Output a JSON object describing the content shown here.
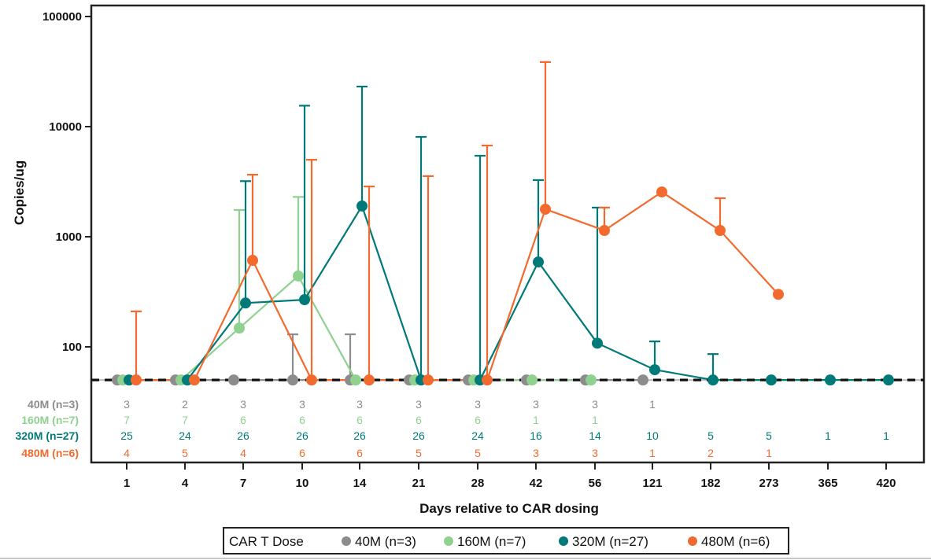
{
  "chart_data": {
    "type": "line",
    "title": "",
    "xlabel": "Days relative to CAR dosing",
    "ylabel": "Copies/ug",
    "yscale": "log",
    "ylim": [
      10,
      100000
    ],
    "yticks": [
      100,
      1000,
      10000,
      100000
    ],
    "ytick_labels": [
      "100",
      "1000",
      "10000",
      "100000"
    ],
    "categories": [
      "1",
      "4",
      "7",
      "10",
      "14",
      "21",
      "28",
      "42",
      "56",
      "121",
      "182",
      "273",
      "365",
      "420"
    ],
    "reference_line": {
      "value": 50,
      "style": "dashed"
    },
    "grid": false,
    "legend": {
      "title": "CAR T Dose",
      "placement": "bottom",
      "entries": [
        "40M (n=3)",
        "160M (n=7)",
        "320M (n=27)",
        "480M (n=6)"
      ]
    },
    "series": [
      {
        "name": "40M (n=3)",
        "color": "#8c8c8c",
        "values": [
          50,
          50,
          50,
          50,
          50,
          50,
          50,
          50,
          50,
          50,
          null,
          null,
          null,
          null
        ],
        "error_upper": [
          null,
          null,
          null,
          130,
          130,
          null,
          null,
          null,
          null,
          null,
          null,
          null,
          null,
          null
        ],
        "n_at_risk": [
          "3",
          "2",
          "3",
          "3",
          "3",
          "3",
          "3",
          "3",
          "3",
          "1",
          "",
          "",
          "",
          ""
        ]
      },
      {
        "name": "160M (n=7)",
        "color": "#8fd18f",
        "values": [
          50,
          50,
          148,
          440,
          50,
          50,
          50,
          50,
          50,
          null,
          null,
          null,
          null,
          null
        ],
        "error_upper": [
          null,
          null,
          1750,
          2300,
          null,
          null,
          null,
          null,
          null,
          null,
          null,
          null,
          null,
          null
        ],
        "n_at_risk": [
          "7",
          "7",
          "6",
          "6",
          "6",
          "6",
          "6",
          "1",
          "1",
          "",
          "",
          "",
          "",
          ""
        ]
      },
      {
        "name": "320M (n=27)",
        "color": "#007a78",
        "values": [
          50,
          50,
          250,
          268,
          1900,
          50,
          50,
          590,
          108,
          62,
          50,
          50,
          50,
          50
        ],
        "error_upper": [
          null,
          null,
          3200,
          15500,
          23100,
          8070,
          5440,
          3270,
          1840,
          112,
          86,
          null,
          null,
          null
        ],
        "n_at_risk": [
          "25",
          "24",
          "26",
          "26",
          "26",
          "26",
          "24",
          "16",
          "14",
          "10",
          "5",
          "5",
          "1",
          "1"
        ]
      },
      {
        "name": "480M (n=6)",
        "color": "#f26a2e",
        "values": [
          50,
          50,
          610,
          50,
          50,
          50,
          50,
          1780,
          1140,
          2550,
          1140,
          300,
          null,
          null
        ],
        "error_upper": [
          210,
          null,
          3660,
          5000,
          2860,
          3550,
          6740,
          38600,
          1840,
          null,
          2240,
          null,
          null,
          null
        ],
        "n_at_risk": [
          "4",
          "5",
          "4",
          "6",
          "6",
          "5",
          "5",
          "3",
          "3",
          "1",
          "2",
          "1",
          "",
          ""
        ]
      }
    ]
  }
}
